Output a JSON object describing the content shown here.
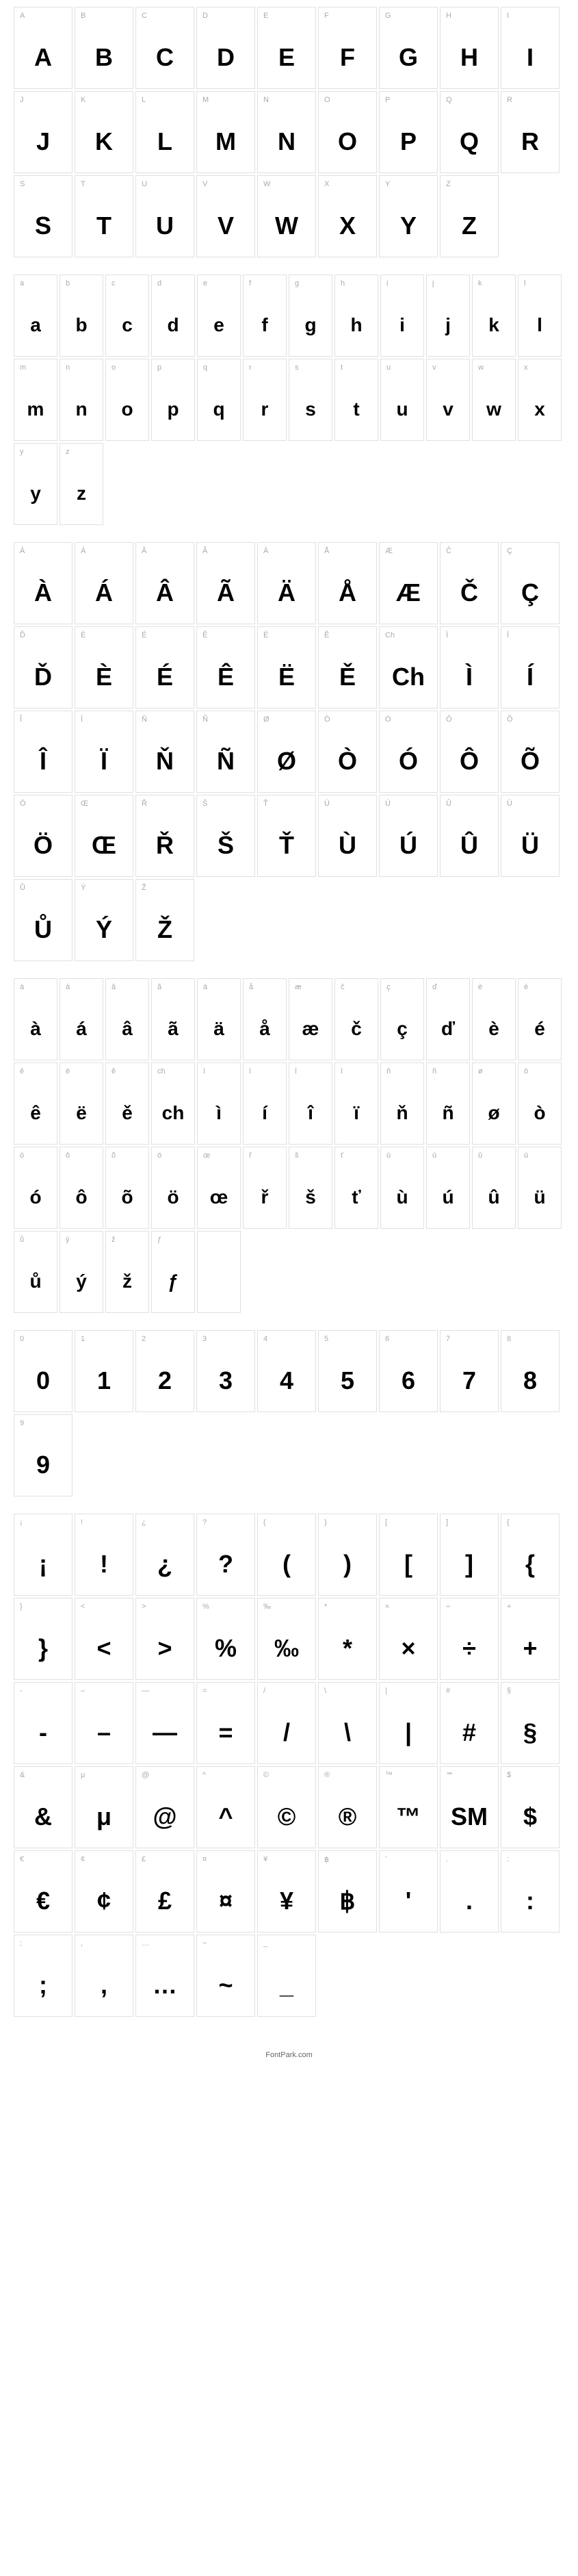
{
  "sections": [
    {
      "id": "uppercase",
      "cells": [
        {
          "label": "A",
          "glyph": "A"
        },
        {
          "label": "B",
          "glyph": "B"
        },
        {
          "label": "C",
          "glyph": "C"
        },
        {
          "label": "D",
          "glyph": "D"
        },
        {
          "label": "E",
          "glyph": "E"
        },
        {
          "label": "F",
          "glyph": "F"
        },
        {
          "label": "G",
          "glyph": "G"
        },
        {
          "label": "H",
          "glyph": "H"
        },
        {
          "label": "I",
          "glyph": "I"
        },
        {
          "label": "J",
          "glyph": "J"
        },
        {
          "label": "K",
          "glyph": "K"
        },
        {
          "label": "L",
          "glyph": "L"
        },
        {
          "label": "M",
          "glyph": "M"
        },
        {
          "label": "N",
          "glyph": "N"
        },
        {
          "label": "O",
          "glyph": "O"
        },
        {
          "label": "P",
          "glyph": "P"
        },
        {
          "label": "Q",
          "glyph": "Q"
        },
        {
          "label": "R",
          "glyph": "R"
        },
        {
          "label": "S",
          "glyph": "S"
        },
        {
          "label": "T",
          "glyph": "T"
        },
        {
          "label": "U",
          "glyph": "U"
        },
        {
          "label": "V",
          "glyph": "V"
        },
        {
          "label": "W",
          "glyph": "W"
        },
        {
          "label": "X",
          "glyph": "X"
        },
        {
          "label": "Y",
          "glyph": "Y"
        },
        {
          "label": "Z",
          "glyph": "Z"
        }
      ]
    },
    {
      "id": "lowercase",
      "narrow": true,
      "cells": [
        {
          "label": "a",
          "glyph": "a"
        },
        {
          "label": "b",
          "glyph": "b"
        },
        {
          "label": "c",
          "glyph": "c"
        },
        {
          "label": "d",
          "glyph": "d"
        },
        {
          "label": "e",
          "glyph": "e"
        },
        {
          "label": "f",
          "glyph": "f"
        },
        {
          "label": "g",
          "glyph": "g"
        },
        {
          "label": "h",
          "glyph": "h"
        },
        {
          "label": "i",
          "glyph": "i"
        },
        {
          "label": "j",
          "glyph": "j"
        },
        {
          "label": "k",
          "glyph": "k"
        },
        {
          "label": "l",
          "glyph": "l"
        },
        {
          "label": "m",
          "glyph": "m"
        },
        {
          "label": "n",
          "glyph": "n"
        },
        {
          "label": "o",
          "glyph": "o"
        },
        {
          "label": "p",
          "glyph": "p"
        },
        {
          "label": "q",
          "glyph": "q"
        },
        {
          "label": "r",
          "glyph": "r"
        },
        {
          "label": "s",
          "glyph": "s"
        },
        {
          "label": "t",
          "glyph": "t"
        },
        {
          "label": "u",
          "glyph": "u"
        },
        {
          "label": "v",
          "glyph": "v"
        },
        {
          "label": "w",
          "glyph": "w"
        },
        {
          "label": "x",
          "glyph": "x"
        },
        {
          "label": "y",
          "glyph": "y"
        },
        {
          "label": "z",
          "glyph": "z"
        }
      ]
    },
    {
      "id": "accented-upper",
      "cells": [
        {
          "label": "À",
          "glyph": "À"
        },
        {
          "label": "Á",
          "glyph": "Á"
        },
        {
          "label": "Â",
          "glyph": "Â"
        },
        {
          "label": "Ã",
          "glyph": "Ã"
        },
        {
          "label": "Ä",
          "glyph": "Ä"
        },
        {
          "label": "Å",
          "glyph": "Å"
        },
        {
          "label": "Æ",
          "glyph": "Æ"
        },
        {
          "label": "Č",
          "glyph": "Č"
        },
        {
          "label": "Ç",
          "glyph": "Ç"
        },
        {
          "label": "Ď",
          "glyph": "Ď"
        },
        {
          "label": "È",
          "glyph": "È"
        },
        {
          "label": "É",
          "glyph": "É"
        },
        {
          "label": "Ê",
          "glyph": "Ê"
        },
        {
          "label": "Ë",
          "glyph": "Ë"
        },
        {
          "label": "Ě",
          "glyph": "Ě"
        },
        {
          "label": "Ch",
          "glyph": "Ch"
        },
        {
          "label": "Ì",
          "glyph": "Ì"
        },
        {
          "label": "Í",
          "glyph": "Í"
        },
        {
          "label": "Î",
          "glyph": "Î"
        },
        {
          "label": "Ï",
          "glyph": "Ï"
        },
        {
          "label": "Ň",
          "glyph": "Ň"
        },
        {
          "label": "Ñ",
          "glyph": "Ñ"
        },
        {
          "label": "Ø",
          "glyph": "Ø"
        },
        {
          "label": "Ò",
          "glyph": "Ò"
        },
        {
          "label": "Ó",
          "glyph": "Ó"
        },
        {
          "label": "Ô",
          "glyph": "Ô"
        },
        {
          "label": "Õ",
          "glyph": "Õ"
        },
        {
          "label": "Ö",
          "glyph": "Ö"
        },
        {
          "label": "Œ",
          "glyph": "Œ"
        },
        {
          "label": "Ř",
          "glyph": "Ř"
        },
        {
          "label": "Š",
          "glyph": "Š"
        },
        {
          "label": "Ť",
          "glyph": "Ť"
        },
        {
          "label": "Ù",
          "glyph": "Ù"
        },
        {
          "label": "Ú",
          "glyph": "Ú"
        },
        {
          "label": "Û",
          "glyph": "Û"
        },
        {
          "label": "Ü",
          "glyph": "Ü"
        },
        {
          "label": "Ů",
          "glyph": "Ů"
        },
        {
          "label": "Ý",
          "glyph": "Ý"
        },
        {
          "label": "Ž",
          "glyph": "Ž"
        }
      ]
    },
    {
      "id": "accented-lower",
      "narrow": true,
      "cells": [
        {
          "label": "à",
          "glyph": "à"
        },
        {
          "label": "á",
          "glyph": "á"
        },
        {
          "label": "â",
          "glyph": "â"
        },
        {
          "label": "ã",
          "glyph": "ã"
        },
        {
          "label": "ä",
          "glyph": "ä"
        },
        {
          "label": "å",
          "glyph": "å"
        },
        {
          "label": "æ",
          "glyph": "æ"
        },
        {
          "label": "č",
          "glyph": "č"
        },
        {
          "label": "ç",
          "glyph": "ç"
        },
        {
          "label": "ď",
          "glyph": "ď"
        },
        {
          "label": "è",
          "glyph": "è"
        },
        {
          "label": "é",
          "glyph": "é"
        },
        {
          "label": "ê",
          "glyph": "ê"
        },
        {
          "label": "ë",
          "glyph": "ë"
        },
        {
          "label": "ě",
          "glyph": "ě"
        },
        {
          "label": "ch",
          "glyph": "ch"
        },
        {
          "label": "ì",
          "glyph": "ì"
        },
        {
          "label": "í",
          "glyph": "í"
        },
        {
          "label": "î",
          "glyph": "î"
        },
        {
          "label": "ï",
          "glyph": "ï"
        },
        {
          "label": "ň",
          "glyph": "ň"
        },
        {
          "label": "ñ",
          "glyph": "ñ"
        },
        {
          "label": "ø",
          "glyph": "ø"
        },
        {
          "label": "ò",
          "glyph": "ò"
        },
        {
          "label": "ó",
          "glyph": "ó"
        },
        {
          "label": "ô",
          "glyph": "ô"
        },
        {
          "label": "õ",
          "glyph": "õ"
        },
        {
          "label": "ö",
          "glyph": "ö"
        },
        {
          "label": "œ",
          "glyph": "œ"
        },
        {
          "label": "ř",
          "glyph": "ř"
        },
        {
          "label": "š",
          "glyph": "š"
        },
        {
          "label": "ť",
          "glyph": "ť"
        },
        {
          "label": "ù",
          "glyph": "ù"
        },
        {
          "label": "ú",
          "glyph": "ú"
        },
        {
          "label": "û",
          "glyph": "û"
        },
        {
          "label": "ü",
          "glyph": "ü"
        },
        {
          "label": "ů",
          "glyph": "ů"
        },
        {
          "label": "ý",
          "glyph": "ý"
        },
        {
          "label": "ž",
          "glyph": "ž"
        },
        {
          "label": "ƒ",
          "glyph": "ƒ"
        },
        {
          "label": "",
          "glyph": ""
        }
      ]
    },
    {
      "id": "numbers",
      "cells": [
        {
          "label": "0",
          "glyph": "0"
        },
        {
          "label": "1",
          "glyph": "1"
        },
        {
          "label": "2",
          "glyph": "2"
        },
        {
          "label": "3",
          "glyph": "3"
        },
        {
          "label": "4",
          "glyph": "4"
        },
        {
          "label": "5",
          "glyph": "5"
        },
        {
          "label": "6",
          "glyph": "6"
        },
        {
          "label": "7",
          "glyph": "7"
        },
        {
          "label": "8",
          "glyph": "8"
        },
        {
          "label": "9",
          "glyph": "9"
        }
      ]
    },
    {
      "id": "symbols",
      "cells": [
        {
          "label": "¡",
          "glyph": "¡"
        },
        {
          "label": "!",
          "glyph": "!"
        },
        {
          "label": "¿",
          "glyph": "¿"
        },
        {
          "label": "?",
          "glyph": "?"
        },
        {
          "label": "(",
          "glyph": "("
        },
        {
          "label": ")",
          "glyph": ")"
        },
        {
          "label": "[",
          "glyph": "["
        },
        {
          "label": "]",
          "glyph": "]"
        },
        {
          "label": "{",
          "glyph": "{"
        },
        {
          "label": "}",
          "glyph": "}"
        },
        {
          "label": "<",
          "glyph": "<"
        },
        {
          "label": ">",
          "glyph": ">"
        },
        {
          "label": "%",
          "glyph": "%"
        },
        {
          "label": "‰",
          "glyph": "‰"
        },
        {
          "label": "*",
          "glyph": "*"
        },
        {
          "label": "×",
          "glyph": "×"
        },
        {
          "label": "÷",
          "glyph": "÷"
        },
        {
          "label": "+",
          "glyph": "+"
        },
        {
          "label": "-",
          "glyph": "-"
        },
        {
          "label": "–",
          "glyph": "–"
        },
        {
          "label": "—",
          "glyph": "—"
        },
        {
          "label": "=",
          "glyph": "="
        },
        {
          "label": "/",
          "glyph": "/"
        },
        {
          "label": "\\",
          "glyph": "\\"
        },
        {
          "label": "|",
          "glyph": "|"
        },
        {
          "label": "#",
          "glyph": "#"
        },
        {
          "label": "§",
          "glyph": "§"
        },
        {
          "label": "&",
          "glyph": "&"
        },
        {
          "label": "μ",
          "glyph": "μ"
        },
        {
          "label": "@",
          "glyph": "@"
        },
        {
          "label": "^",
          "glyph": "^"
        },
        {
          "label": "©",
          "glyph": "©"
        },
        {
          "label": "®",
          "glyph": "®"
        },
        {
          "label": "™",
          "glyph": "™"
        },
        {
          "label": "℠",
          "glyph": "SM"
        },
        {
          "label": "$",
          "glyph": "$"
        },
        {
          "label": "€",
          "glyph": "€"
        },
        {
          "label": "¢",
          "glyph": "¢"
        },
        {
          "label": "£",
          "glyph": "£"
        },
        {
          "label": "¤",
          "glyph": "¤"
        },
        {
          "label": "¥",
          "glyph": "¥"
        },
        {
          "label": "฿",
          "glyph": "฿"
        },
        {
          "label": "'",
          "glyph": "'"
        },
        {
          "label": ".",
          "glyph": "."
        },
        {
          "label": ":",
          "glyph": ":"
        },
        {
          "label": ";",
          "glyph": ";"
        },
        {
          "label": ",",
          "glyph": ","
        },
        {
          "label": "…",
          "glyph": "…"
        },
        {
          "label": "~",
          "glyph": "~"
        },
        {
          "label": "_",
          "glyph": "_"
        }
      ]
    }
  ],
  "footer": "FontPark.com"
}
